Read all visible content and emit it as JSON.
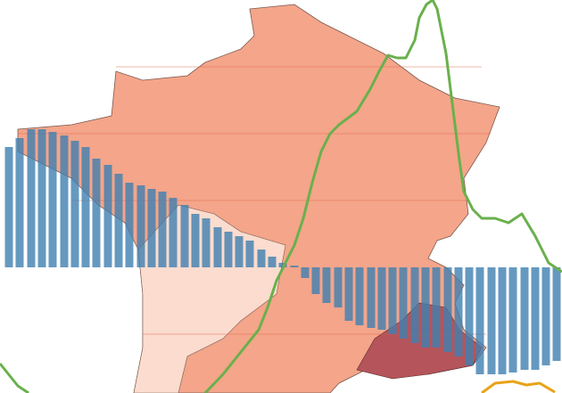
{
  "chart_data": [
    {
      "type": "bar",
      "color": "#3f7fb0",
      "xlim": [
        0,
        630
      ],
      "ylim": [
        -141,
        300
      ],
      "x": [
        10,
        22,
        35,
        47,
        59,
        72,
        84,
        96,
        108,
        121,
        133,
        145,
        158,
        170,
        182,
        194,
        207,
        219,
        231,
        244,
        256,
        268,
        280,
        293,
        305,
        317,
        330,
        342,
        354,
        366,
        379,
        391,
        403,
        416,
        428,
        440,
        452,
        465,
        477,
        489,
        502,
        514,
        526,
        538,
        551,
        563,
        575,
        588,
        600,
        612,
        624
      ],
      "values": [
        135,
        145,
        155,
        155,
        152,
        148,
        142,
        135,
        122,
        115,
        105,
        95,
        92,
        88,
        85,
        78,
        70,
        60,
        55,
        45,
        40,
        35,
        30,
        20,
        12,
        5,
        2,
        -12,
        -30,
        -40,
        -45,
        -60,
        -65,
        -68,
        -70,
        -75,
        -80,
        -85,
        -90,
        -90,
        -95,
        -100,
        -110,
        -120,
        -120,
        -120,
        -118,
        -115,
        -115,
        -110,
        -105
      ]
    },
    {
      "type": "line",
      "xlim": [
        0,
        630
      ],
      "ylim": [
        -141,
        300
      ],
      "series": [
        {
          "color": "#6ab04c",
          "x": [
            0,
            20,
            32,
            null,
            230,
            250,
            270,
            290,
            300,
            310,
            320,
            330,
            340,
            350,
            360,
            370,
            380,
            400,
            415,
            425,
            435,
            445,
            455,
            465,
            470,
            478,
            485,
            490,
            500,
            505,
            510,
            515,
            520,
            530,
            540,
            555,
            570,
            585,
            600,
            615,
            630
          ],
          "values": [
            -108,
            -133,
            -141,
            null,
            -141,
            -120,
            -95,
            -70,
            -45,
            -15,
            5,
            25,
            55,
            95,
            130,
            150,
            160,
            175,
            200,
            220,
            238,
            235,
            235,
            255,
            280,
            295,
            300,
            290,
            240,
            200,
            160,
            120,
            85,
            65,
            55,
            55,
            50,
            60,
            35,
            5,
            -5
          ]
        },
        {
          "color": "#e8a317",
          "x": [
            540,
            555,
            575,
            590,
            605,
            622
          ],
          "values": [
            -141,
            -130,
            -128,
            -132,
            -130,
            -140
          ]
        }
      ]
    }
  ]
}
